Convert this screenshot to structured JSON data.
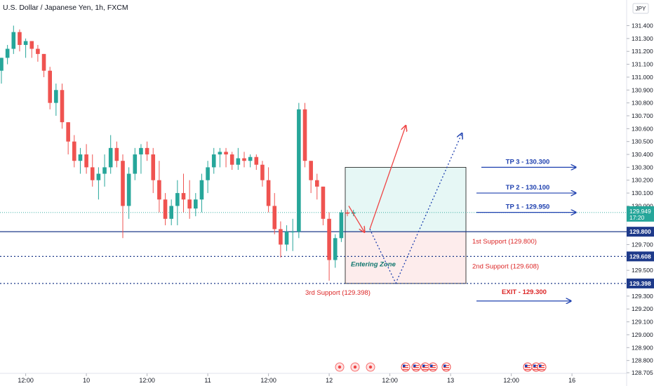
{
  "chart_data": {
    "type": "candlestick",
    "title": "U.S. Dollar / Japanese Yen, 1h, FXCM",
    "currency": "JPY",
    "y_ticks": [
      "131.400",
      "131.300",
      "131.200",
      "131.100",
      "131.000",
      "130.900",
      "130.800",
      "130.700",
      "130.600",
      "130.500",
      "130.400",
      "130.300",
      "130.200",
      "130.100",
      "130.000",
      "129.900",
      "129.700",
      "129.600",
      "129.500",
      "129.400",
      "129.300",
      "129.200",
      "129.100",
      "129.000",
      "128.900",
      "128.800",
      "128.705"
    ],
    "ylim": [
      128.7,
      131.49
    ],
    "x_ticks": [
      {
        "label": "12:00",
        "bar": 4
      },
      {
        "label": "10",
        "bar": 14
      },
      {
        "label": "12:00",
        "bar": 24
      },
      {
        "label": "11",
        "bar": 34
      },
      {
        "label": "12:00",
        "bar": 44
      },
      {
        "label": "12",
        "bar": 54
      },
      {
        "label": "12:00",
        "bar": 64
      },
      {
        "label": "13",
        "bar": 74
      },
      {
        "label": "12:00",
        "bar": 84
      },
      {
        "label": "16",
        "bar": 94
      }
    ],
    "candles": [
      [
        131.05,
        131.15,
        130.95,
        131.15
      ],
      [
        131.15,
        131.25,
        131.1,
        131.22
      ],
      [
        131.22,
        131.4,
        131.18,
        131.35
      ],
      [
        131.35,
        131.37,
        131.2,
        131.25
      ],
      [
        131.25,
        131.3,
        131.15,
        131.28
      ],
      [
        131.28,
        131.28,
        131.15,
        131.22
      ],
      [
        131.22,
        131.25,
        131.12,
        131.18
      ],
      [
        131.18,
        131.18,
        131.0,
        131.05
      ],
      [
        131.05,
        131.08,
        130.75,
        130.8
      ],
      [
        130.8,
        130.95,
        130.7,
        130.9
      ],
      [
        130.9,
        130.95,
        130.6,
        130.65
      ],
      [
        130.65,
        130.65,
        130.4,
        130.5
      ],
      [
        130.5,
        130.55,
        130.3,
        130.35
      ],
      [
        130.35,
        130.45,
        130.25,
        130.4
      ],
      [
        130.4,
        130.48,
        130.25,
        130.3
      ],
      [
        130.3,
        130.4,
        130.15,
        130.2
      ],
      [
        130.2,
        130.3,
        130.05,
        130.25
      ],
      [
        130.25,
        130.4,
        130.15,
        130.3
      ],
      [
        130.3,
        130.55,
        130.25,
        130.45
      ],
      [
        130.45,
        130.5,
        130.3,
        130.35
      ],
      [
        130.35,
        130.4,
        129.75,
        130.0
      ],
      [
        130.0,
        130.3,
        129.9,
        130.25
      ],
      [
        130.25,
        130.45,
        130.2,
        130.4
      ],
      [
        130.4,
        130.48,
        130.25,
        130.45
      ],
      [
        130.45,
        130.5,
        130.35,
        130.4
      ],
      [
        130.4,
        130.45,
        130.1,
        130.2
      ],
      [
        130.2,
        130.35,
        129.95,
        130.05
      ],
      [
        130.05,
        130.1,
        129.85,
        129.9
      ],
      [
        129.9,
        130.05,
        129.85,
        130.0
      ],
      [
        130.0,
        130.2,
        129.85,
        130.1
      ],
      [
        130.1,
        130.25,
        129.95,
        130.05
      ],
      [
        130.05,
        130.2,
        129.9,
        129.98
      ],
      [
        129.98,
        130.1,
        129.92,
        130.05
      ],
      [
        130.05,
        130.25,
        129.95,
        130.2
      ],
      [
        130.2,
        130.35,
        130.1,
        130.3
      ],
      [
        130.3,
        130.45,
        130.25,
        130.4
      ],
      [
        130.4,
        130.45,
        130.3,
        130.42
      ],
      [
        130.42,
        130.45,
        130.3,
        130.4
      ],
      [
        130.4,
        130.42,
        130.28,
        130.32
      ],
      [
        130.32,
        130.45,
        130.28,
        130.37
      ],
      [
        130.37,
        130.42,
        130.3,
        130.35
      ],
      [
        130.35,
        130.4,
        130.3,
        130.38
      ],
      [
        130.38,
        130.4,
        130.28,
        130.32
      ],
      [
        130.32,
        130.35,
        130.15,
        130.2
      ],
      [
        130.2,
        130.3,
        129.95,
        130.0
      ],
      [
        130.0,
        130.1,
        129.78,
        129.82
      ],
      [
        129.82,
        129.88,
        129.6,
        129.7
      ],
      [
        129.7,
        129.85,
        129.65,
        129.8
      ],
      [
        129.8,
        129.9,
        129.65,
        129.8
      ],
      [
        129.8,
        130.8,
        129.75,
        130.75
      ],
      [
        130.75,
        130.8,
        130.3,
        130.35
      ],
      [
        130.35,
        130.35,
        130.1,
        130.2
      ],
      [
        130.2,
        130.25,
        130.05,
        130.15
      ],
      [
        130.15,
        130.15,
        129.85,
        129.9
      ],
      [
        129.9,
        129.95,
        129.42,
        129.58
      ],
      [
        129.58,
        129.78,
        129.52,
        129.75
      ],
      [
        129.75,
        129.97,
        129.72,
        129.95
      ],
      [
        129.95,
        129.97,
        129.92,
        129.94
      ],
      [
        129.94,
        129.97,
        129.92,
        129.95
      ]
    ],
    "current_price": "129.949",
    "countdown": "17:20",
    "support_lines": [
      {
        "price": "129.800",
        "style": "solid",
        "color": "#1e3a8a"
      },
      {
        "price": "129.608",
        "style": "dotted",
        "color": "#1e3a8a"
      },
      {
        "price": "129.398",
        "style": "dotted",
        "color": "#1e3a8a"
      }
    ],
    "tp_labels": [
      {
        "text": "TP 3 - 130.300",
        "price": 130.3
      },
      {
        "text": "TP 2 - 130.100",
        "price": 130.1
      },
      {
        "text": "TP 1 - 129.950",
        "price": 129.95
      }
    ],
    "exit_label": {
      "text": "EXIT - 129.300",
      "price": 129.3
    },
    "support_labels": [
      {
        "text": "1st Support (129.800)",
        "price": 129.8
      },
      {
        "text": "2nd Support (129.608)",
        "price": 129.608
      },
      {
        "text": "3rd Support (129.398)",
        "price": 129.398
      }
    ],
    "entering_zone": {
      "text": "Entering Zone",
      "stop": 129.398,
      "entry": 129.8,
      "target": 130.3
    },
    "colors": {
      "up": "#26a69a",
      "down": "#ef5350",
      "tp": "#1e40af",
      "support": "#dc2626",
      "zone": "#0f766e"
    }
  }
}
